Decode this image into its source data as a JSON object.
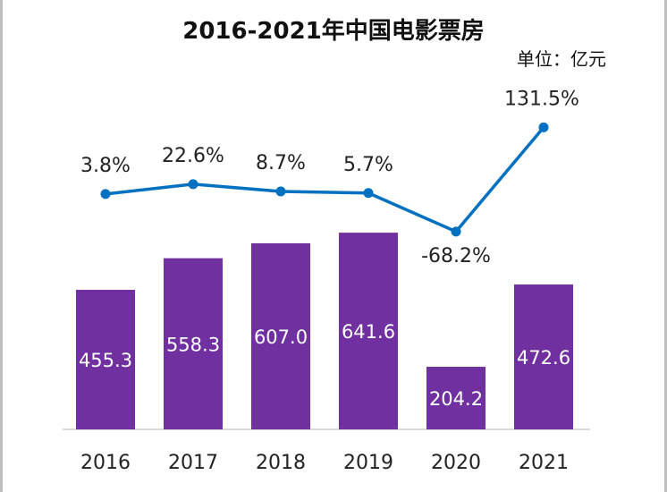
{
  "chart_data": {
    "type": "bar",
    "title": "2016-2021年中国电影票房",
    "unit_label": "单位：亿元",
    "categories": [
      "2016",
      "2017",
      "2018",
      "2019",
      "2020",
      "2021"
    ],
    "series": [
      {
        "type": "bar",
        "values": [
          455.3,
          558.3,
          607.0,
          641.6,
          204.2,
          472.6
        ],
        "value_labels": [
          "455.3",
          "558.3",
          "607.0",
          "641.6",
          "204.2",
          "472.6"
        ]
      },
      {
        "type": "line",
        "values": [
          3.8,
          22.6,
          8.7,
          5.7,
          -68.2,
          131.5
        ],
        "value_labels": [
          "3.8%",
          "22.6%",
          "8.7%",
          "5.7%",
          "-68.2%",
          "131.5%"
        ]
      }
    ],
    "colors": {
      "bar": "#7030A0",
      "line": "#0070C0"
    }
  }
}
